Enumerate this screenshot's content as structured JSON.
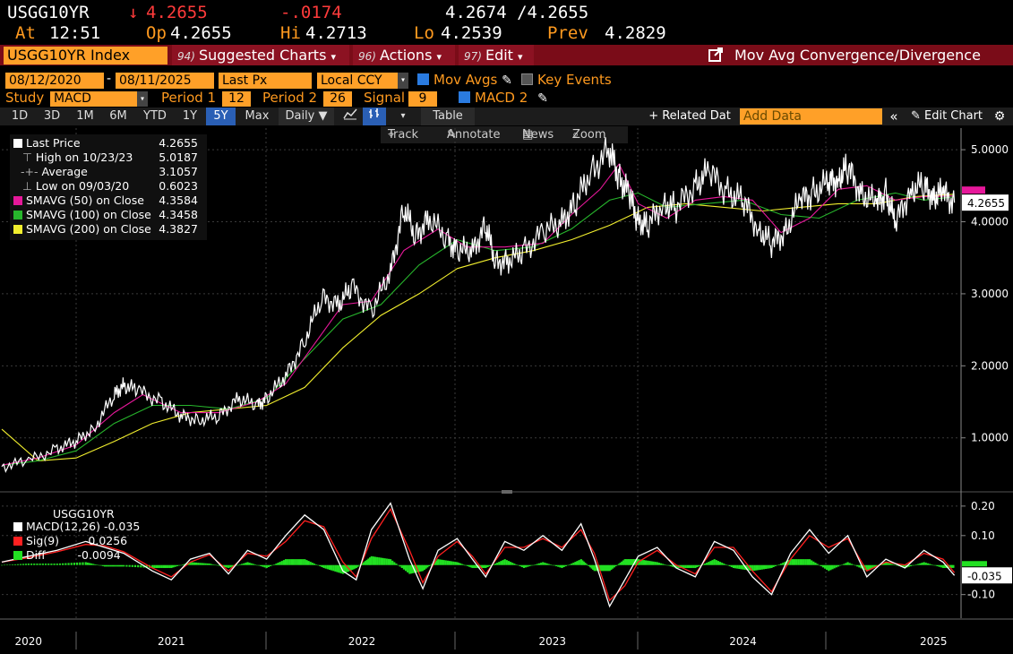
{
  "quote": {
    "ticker": "USGG10YR",
    "last_arrow": "↓",
    "last": "4.2655",
    "change": "-.0174",
    "bid_ask": "4.2674 /4.2655",
    "at_label": "At",
    "at_time": "12:51",
    "open_label": "Op",
    "open": "4.2655",
    "hi_label": "Hi",
    "hi": "4.2713",
    "lo_label": "Lo",
    "lo": "4.2539",
    "prev_label": "Prev",
    "prev": "4.2829"
  },
  "menu": {
    "security": "USGG10YR Index",
    "items": [
      {
        "num": "94)",
        "label": "Suggested Charts",
        "caret": "▾"
      },
      {
        "num": "96)",
        "label": "Actions",
        "caret": "▾"
      },
      {
        "num": "97)",
        "label": "Edit",
        "caret": "▾"
      }
    ],
    "study_title": "Mov Avg Convergence/Divergence"
  },
  "controls": {
    "date_from": "08/12/2020",
    "date_sep": "-",
    "date_to": "08/11/2025",
    "px_field": "Last Px",
    "currency": "Local CCY",
    "mov_avgs": "Mov Avgs",
    "key_events": "Key Events",
    "study_label": "Study",
    "study": "MACD",
    "period1_label": "Period 1",
    "period1": "12",
    "period2_label": "Period 2",
    "period2": "26",
    "signal_label": "Signal",
    "signal": "9",
    "macd2": "MACD 2"
  },
  "toolbar": {
    "ranges": [
      "1D",
      "3D",
      "1M",
      "6M",
      "YTD",
      "1Y",
      "5Y",
      "Max"
    ],
    "selected_range": "5Y",
    "frequency": "Daily ▼",
    "table": "Table",
    "related": "+ Related Dat",
    "add_data_placeholder": "Add Data",
    "edit_chart": "Edit Chart",
    "track": "Track",
    "annotate": "Annotate",
    "news": "News",
    "zoom": "Zoom"
  },
  "legend": [
    {
      "label": "Last Price",
      "value": "4.2655",
      "color": "#ffffff"
    },
    {
      "label": "High on 10/23/23",
      "value": "5.0187",
      "color": "#aaaaaa"
    },
    {
      "label": "Average",
      "value": "3.1057",
      "color": "#aaaaaa"
    },
    {
      "label": "Low on 09/03/20",
      "value": "0.6023",
      "color": "#aaaaaa"
    },
    {
      "label": "SMAVG (50)  on Close",
      "value": "4.3584",
      "color": "#e6189a"
    },
    {
      "label": "SMAVG (100)  on Close",
      "value": "4.3458",
      "color": "#27b52c"
    },
    {
      "label": "SMAVG (200)  on Close",
      "value": "4.3827",
      "color": "#f2ef2e"
    }
  ],
  "macd_legend": {
    "title": "USGG10YR",
    "rows": [
      {
        "label": "MACD(12,26)",
        "value": "-0.035",
        "color": "#ffffff"
      },
      {
        "label": "Sig(9)",
        "value": "-0.0256",
        "color": "#ff2020"
      },
      {
        "label": "Diff",
        "value": "-0.0094",
        "color": "#22e022"
      }
    ]
  },
  "colors": {
    "accent": "#ffa028",
    "menu_bar": "#7a0c18",
    "price": "#ffffff",
    "sma50": "#e6189a",
    "sma100": "#27b52c",
    "sma200": "#f2ef2e",
    "macd": "#ffffff",
    "signal": "#ff2020",
    "hist": "#22e022"
  },
  "chart_data": [
    {
      "type": "line",
      "ylim": [
        0.3,
        5.3
      ],
      "y_ticks": [
        "1.0000",
        "2.0000",
        "3.0000",
        "4.0000",
        "5.0000"
      ],
      "y_tick_values": [
        1,
        2,
        3,
        4,
        5
      ],
      "last_label": "4.2655",
      "x_tick_labels": [
        "2020",
        "2021",
        "2022",
        "2023",
        "2024",
        "2025"
      ],
      "x_tick_dates": [
        2020.75,
        2021.5,
        2022.5,
        2023.5,
        2024.5,
        2025.5
      ],
      "xlim": [
        2020.61,
        2025.64
      ],
      "series": [
        {
          "name": "Last Price",
          "x": [
            2020.61,
            2020.75,
            2020.9,
            2021.0,
            2021.1,
            2021.2,
            2021.25,
            2021.33,
            2021.45,
            2021.55,
            2021.65,
            2021.75,
            2021.85,
            2021.95,
            2022.0,
            2022.1,
            2022.2,
            2022.29,
            2022.38,
            2022.45,
            2022.55,
            2022.65,
            2022.72,
            2022.78,
            2022.85,
            2022.95,
            2023.0,
            2023.08,
            2023.15,
            2023.2,
            2023.27,
            2023.35,
            2023.45,
            2023.55,
            2023.62,
            2023.7,
            2023.8,
            2023.85,
            2023.9,
            2023.95,
            2024.0,
            2024.08,
            2024.15,
            2024.25,
            2024.32,
            2024.42,
            2024.5,
            2024.58,
            2024.65,
            2024.72,
            2024.8,
            2024.87,
            2024.95,
            2025.0,
            2025.05,
            2025.12,
            2025.2,
            2025.25,
            2025.3,
            2025.38,
            2025.45,
            2025.5,
            2025.55,
            2025.61
          ],
          "y": [
            0.6,
            0.68,
            0.85,
            0.95,
            1.15,
            1.6,
            1.73,
            1.65,
            1.5,
            1.3,
            1.25,
            1.3,
            1.55,
            1.45,
            1.55,
            1.85,
            2.35,
            2.95,
            2.85,
            3.1,
            2.75,
            3.3,
            4.2,
            3.8,
            4.05,
            3.75,
            3.6,
            3.6,
            3.95,
            3.45,
            3.45,
            3.6,
            3.85,
            4.0,
            4.25,
            4.7,
            5.0,
            4.6,
            4.4,
            4.0,
            3.95,
            4.25,
            4.2,
            4.5,
            4.7,
            4.4,
            4.3,
            3.9,
            3.7,
            3.85,
            4.3,
            4.4,
            4.55,
            4.6,
            4.75,
            4.4,
            4.25,
            4.4,
            3.98,
            4.45,
            4.5,
            4.35,
            4.4,
            4.2655
          ]
        },
        {
          "name": "SMAVG (50)  on Close",
          "x": [
            2020.61,
            2020.8,
            2021.0,
            2021.2,
            2021.35,
            2021.55,
            2021.75,
            2021.95,
            2022.1,
            2022.25,
            2022.4,
            2022.55,
            2022.72,
            2022.9,
            2023.05,
            2023.25,
            2023.45,
            2023.6,
            2023.75,
            2023.85,
            2023.95,
            2024.1,
            2024.25,
            2024.4,
            2024.55,
            2024.7,
            2024.85,
            2025.0,
            2025.15,
            2025.3,
            2025.45,
            2025.61
          ],
          "y": [
            0.62,
            0.72,
            0.9,
            1.35,
            1.6,
            1.35,
            1.35,
            1.5,
            1.75,
            2.3,
            2.85,
            2.9,
            3.6,
            3.9,
            3.65,
            3.65,
            3.7,
            4.1,
            4.45,
            4.8,
            4.25,
            4.05,
            4.3,
            4.35,
            4.3,
            3.85,
            4.05,
            4.45,
            4.5,
            4.3,
            4.35,
            4.3584
          ]
        },
        {
          "name": "SMAVG (100)  on Close",
          "x": [
            2020.61,
            2020.8,
            2021.0,
            2021.2,
            2021.4,
            2021.6,
            2021.8,
            2022.0,
            2022.2,
            2022.4,
            2022.6,
            2022.8,
            2023.0,
            2023.2,
            2023.4,
            2023.6,
            2023.8,
            2023.95,
            2024.1,
            2024.3,
            2024.5,
            2024.7,
            2024.9,
            2025.1,
            2025.3,
            2025.45,
            2025.61
          ],
          "y": [
            0.62,
            0.68,
            0.82,
            1.2,
            1.45,
            1.45,
            1.4,
            1.55,
            2.1,
            2.65,
            2.85,
            3.4,
            3.75,
            3.6,
            3.65,
            3.9,
            4.3,
            4.4,
            4.2,
            4.25,
            4.3,
            4.1,
            4.05,
            4.3,
            4.4,
            4.3,
            4.3458
          ]
        },
        {
          "name": "SMAVG (200)  on Close",
          "x": [
            2020.61,
            2020.8,
            2021.0,
            2021.2,
            2021.4,
            2021.6,
            2021.8,
            2022.0,
            2022.2,
            2022.4,
            2022.6,
            2022.8,
            2023.0,
            2023.2,
            2023.4,
            2023.6,
            2023.8,
            2024.0,
            2024.2,
            2024.4,
            2024.6,
            2024.8,
            2025.0,
            2025.2,
            2025.4,
            2025.61
          ],
          "y": [
            1.12,
            0.68,
            0.72,
            0.95,
            1.2,
            1.35,
            1.4,
            1.45,
            1.7,
            2.25,
            2.7,
            3.0,
            3.35,
            3.5,
            3.6,
            3.75,
            3.95,
            4.2,
            4.25,
            4.2,
            4.15,
            4.2,
            4.25,
            4.25,
            4.35,
            4.3827
          ]
        }
      ]
    },
    {
      "type": "line",
      "ylim": [
        -0.18,
        0.23
      ],
      "y_ticks": [
        "0.20",
        "0.10",
        "-0.10"
      ],
      "y_tick_values": [
        0.2,
        0.1,
        -0.1
      ],
      "last_label": "-0.035",
      "series": [
        {
          "name": "MACD(12,26)",
          "x": [
            2020.61,
            2020.75,
            2020.9,
            2021.05,
            2021.15,
            2021.25,
            2021.4,
            2021.5,
            2021.6,
            2021.7,
            2021.8,
            2021.9,
            2022.0,
            2022.1,
            2022.2,
            2022.3,
            2022.4,
            2022.47,
            2022.55,
            2022.65,
            2022.75,
            2022.82,
            2022.9,
            2023.0,
            2023.08,
            2023.15,
            2023.25,
            2023.35,
            2023.45,
            2023.55,
            2023.65,
            2023.72,
            2023.8,
            2023.88,
            2023.95,
            2024.05,
            2024.15,
            2024.25,
            2024.35,
            2024.45,
            2024.55,
            2024.65,
            2024.75,
            2024.85,
            2024.95,
            2025.05,
            2025.15,
            2025.25,
            2025.35,
            2025.45,
            2025.55,
            2025.61
          ],
          "y": [
            0.01,
            0.03,
            0.05,
            0.08,
            0.06,
            0.04,
            -0.02,
            -0.05,
            0.02,
            0.04,
            -0.03,
            0.05,
            0.02,
            0.1,
            0.17,
            0.12,
            -0.02,
            -0.05,
            0.12,
            0.21,
            0.02,
            -0.08,
            0.05,
            0.09,
            0.02,
            -0.04,
            0.08,
            0.05,
            0.1,
            0.05,
            0.14,
            0.02,
            -0.14,
            -0.05,
            0.03,
            0.06,
            -0.01,
            -0.04,
            0.08,
            0.05,
            -0.04,
            -0.1,
            0.04,
            0.12,
            0.04,
            0.1,
            -0.04,
            0.02,
            -0.01,
            0.05,
            0.01,
            -0.035
          ]
        },
        {
          "name": "Sig(9)",
          "x": [
            2020.61,
            2020.75,
            2020.9,
            2021.05,
            2021.15,
            2021.25,
            2021.4,
            2021.5,
            2021.6,
            2021.7,
            2021.8,
            2021.9,
            2022.0,
            2022.1,
            2022.2,
            2022.3,
            2022.4,
            2022.47,
            2022.55,
            2022.65,
            2022.75,
            2022.82,
            2022.9,
            2023.0,
            2023.08,
            2023.15,
            2023.25,
            2023.35,
            2023.45,
            2023.55,
            2023.65,
            2023.72,
            2023.8,
            2023.88,
            2023.95,
            2024.05,
            2024.15,
            2024.25,
            2024.35,
            2024.45,
            2024.55,
            2024.65,
            2024.75,
            2024.85,
            2024.95,
            2025.05,
            2025.15,
            2025.25,
            2025.35,
            2025.45,
            2025.55,
            2025.61
          ],
          "y": [
            0.01,
            0.025,
            0.045,
            0.07,
            0.065,
            0.045,
            -0.01,
            -0.04,
            0.01,
            0.035,
            -0.02,
            0.04,
            0.03,
            0.08,
            0.15,
            0.13,
            0.01,
            -0.04,
            0.09,
            0.19,
            0.05,
            -0.06,
            0.03,
            0.08,
            0.03,
            -0.03,
            0.06,
            0.06,
            0.09,
            0.06,
            0.12,
            0.04,
            -0.12,
            -0.07,
            0.01,
            0.05,
            0.0,
            -0.03,
            0.06,
            0.06,
            -0.02,
            -0.09,
            0.02,
            0.1,
            0.06,
            0.09,
            -0.02,
            0.01,
            0.0,
            0.04,
            0.02,
            -0.0256
          ]
        },
        {
          "name": "Diff",
          "x": [
            2020.61,
            2020.75,
            2020.9,
            2021.05,
            2021.15,
            2021.25,
            2021.4,
            2021.5,
            2021.6,
            2021.7,
            2021.8,
            2021.9,
            2022.0,
            2022.1,
            2022.2,
            2022.3,
            2022.4,
            2022.47,
            2022.55,
            2022.65,
            2022.75,
            2022.82,
            2022.9,
            2023.0,
            2023.08,
            2023.15,
            2023.25,
            2023.35,
            2023.45,
            2023.55,
            2023.65,
            2023.72,
            2023.8,
            2023.88,
            2023.95,
            2024.05,
            2024.15,
            2024.25,
            2024.35,
            2024.45,
            2024.55,
            2024.65,
            2024.75,
            2024.85,
            2024.95,
            2025.05,
            2025.15,
            2025.25,
            2025.35,
            2025.45,
            2025.55,
            2025.61
          ],
          "y": [
            0.0,
            0.005,
            0.005,
            0.01,
            -0.005,
            -0.005,
            -0.01,
            -0.01,
            0.01,
            0.005,
            -0.01,
            0.01,
            -0.01,
            0.02,
            0.02,
            -0.01,
            -0.03,
            -0.01,
            0.03,
            0.02,
            -0.03,
            -0.02,
            0.02,
            0.01,
            -0.01,
            -0.01,
            0.02,
            -0.01,
            0.01,
            -0.01,
            0.02,
            -0.02,
            -0.02,
            0.02,
            0.02,
            0.01,
            -0.01,
            -0.01,
            0.02,
            -0.01,
            -0.02,
            -0.01,
            0.02,
            0.02,
            -0.02,
            0.01,
            -0.02,
            0.01,
            -0.01,
            0.01,
            -0.01,
            -0.0094
          ]
        }
      ]
    }
  ]
}
